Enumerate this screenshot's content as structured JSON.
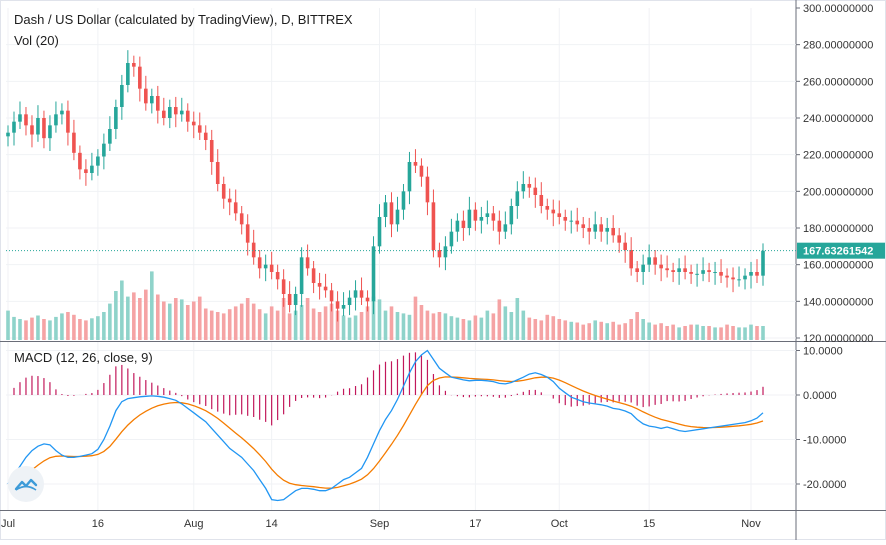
{
  "chart_data": [
    {
      "type": "candlestick",
      "title": "Dash / US Dollar (calculated by TradingView), D, BITTREX",
      "volume_label": "Vol (20)",
      "price_axis_ticks": [
        "300.00000000",
        "280.00000000",
        "260.00000000",
        "240.00000000",
        "220.00000000",
        "200.00000000",
        "180.00000000",
        "160.00000000",
        "140.00000000",
        "120.00000000"
      ],
      "ylim": [
        120,
        300
      ],
      "last_price_label": "167.63261542",
      "last_price": 167.63,
      "x_ticks": [
        "Jul",
        "16",
        "Aug",
        "14",
        "Sep",
        "17",
        "Oct",
        "15",
        "Nov"
      ],
      "x_tick_days": [
        0,
        15,
        31,
        44,
        62,
        78,
        92,
        107,
        124
      ],
      "first_day": 0,
      "last_day": 126,
      "closes": [
        232,
        238,
        242,
        236,
        231,
        240,
        229,
        236,
        242,
        244,
        232,
        221,
        212,
        210,
        214,
        219,
        226,
        234,
        246,
        258,
        270,
        268,
        256,
        248,
        252,
        244,
        240,
        246,
        242,
        244,
        238,
        236,
        232,
        228,
        216,
        204,
        196,
        194,
        188,
        182,
        172,
        164,
        158,
        160,
        156,
        152,
        144,
        138,
        144,
        164,
        158,
        150,
        148,
        146,
        140,
        136,
        138,
        142,
        146,
        142,
        140,
        170,
        186,
        194,
        182,
        190,
        200,
        216,
        214,
        208,
        194,
        168,
        164,
        170,
        178,
        184,
        180,
        190,
        184,
        186,
        188,
        184,
        178,
        182,
        192,
        200,
        204,
        202,
        198,
        192,
        190,
        188,
        186,
        184,
        184,
        182,
        180,
        178,
        182,
        178,
        180,
        176,
        172,
        168,
        158,
        156,
        160,
        164,
        160,
        158,
        157,
        156,
        158,
        156,
        155,
        155,
        157,
        156,
        156,
        154,
        153,
        152,
        152,
        154,
        156,
        154,
        167.6
      ],
      "volumes": [
        0.42,
        0.33,
        0.3,
        0.28,
        0.32,
        0.35,
        0.3,
        0.28,
        0.33,
        0.38,
        0.4,
        0.36,
        0.3,
        0.28,
        0.31,
        0.34,
        0.4,
        0.52,
        0.7,
        0.85,
        0.62,
        0.68,
        0.6,
        0.72,
        0.98,
        0.65,
        0.55,
        0.52,
        0.6,
        0.58,
        0.5,
        0.55,
        0.62,
        0.45,
        0.42,
        0.4,
        0.38,
        0.44,
        0.48,
        0.52,
        0.6,
        0.52,
        0.44,
        0.38,
        0.48,
        0.42,
        0.6,
        0.38,
        0.42,
        0.5,
        0.6,
        0.45,
        0.4,
        0.48,
        0.52,
        0.42,
        0.35,
        0.32,
        0.35,
        0.4,
        0.48,
        0.62,
        0.58,
        0.42,
        0.48,
        0.4,
        0.38,
        0.36,
        0.62,
        0.5,
        0.42,
        0.38,
        0.4,
        0.38,
        0.34,
        0.32,
        0.3,
        0.28,
        0.35,
        0.32,
        0.42,
        0.38,
        0.58,
        0.48,
        0.4,
        0.6,
        0.42,
        0.32,
        0.3,
        0.28,
        0.36,
        0.34,
        0.3,
        0.28,
        0.26,
        0.25,
        0.22,
        0.24,
        0.28,
        0.26,
        0.24,
        0.26,
        0.22,
        0.24,
        0.3,
        0.4,
        0.3,
        0.25,
        0.22,
        0.24,
        0.2,
        0.22,
        0.18,
        0.2,
        0.22,
        0.22,
        0.2,
        0.2,
        0.18,
        0.18,
        0.22,
        0.2,
        0.18,
        0.18,
        0.22,
        0.2,
        0.2
      ],
      "macd_axis_ticks": [
        "10.0000",
        "0.0000",
        "-10.0000",
        "-20.0000"
      ],
      "macd_ylim": [
        -24.5,
        12
      ],
      "macd_label": "MACD (12, 26, close, 9)",
      "macd_line": [
        -20,
        -18,
        -16,
        -14,
        -12.5,
        -11.5,
        -11,
        -11.2,
        -12.5,
        -13.5,
        -14,
        -14,
        -13.8,
        -13.5,
        -13.2,
        -12.2,
        -10,
        -7,
        -3.5,
        -1.5,
        -0.8,
        -0.6,
        -0.4,
        -0.3,
        -0.2,
        -0.3,
        -0.5,
        -0.8,
        -1.2,
        -2,
        -3,
        -4,
        -5,
        -6,
        -7.5,
        -9,
        -10.5,
        -12,
        -13,
        -14,
        -15.5,
        -17,
        -19,
        -21,
        -23.5,
        -23.7,
        -23.5,
        -22.5,
        -21.5,
        -21,
        -21,
        -21.2,
        -21.5,
        -21.5,
        -21,
        -20,
        -19,
        -18.5,
        -17.5,
        -16.5,
        -14,
        -11,
        -8,
        -5.5,
        -3.5,
        -1,
        2,
        5,
        7.5,
        9,
        10,
        8,
        6,
        5,
        4,
        3.7,
        3.4,
        3.2,
        3.3,
        3.3,
        3.2,
        3,
        2.6,
        2.5,
        2.8,
        3.4,
        4,
        4.7,
        5,
        4.6,
        4,
        3,
        1.5,
        0.5,
        -0.5,
        -1,
        -1.5,
        -1.8,
        -2,
        -2.2,
        -2.5,
        -3,
        -3.2,
        -3.6,
        -4.2,
        -5.5,
        -6.5,
        -7,
        -7.2,
        -7.5,
        -7.2,
        -7.6,
        -8,
        -8.2,
        -8,
        -7.8,
        -7.6,
        -7.4,
        -7.2,
        -7,
        -6.8,
        -6.6,
        -6.4,
        -6.2,
        -5.8,
        -5.2,
        -4
      ]
    }
  ]
}
